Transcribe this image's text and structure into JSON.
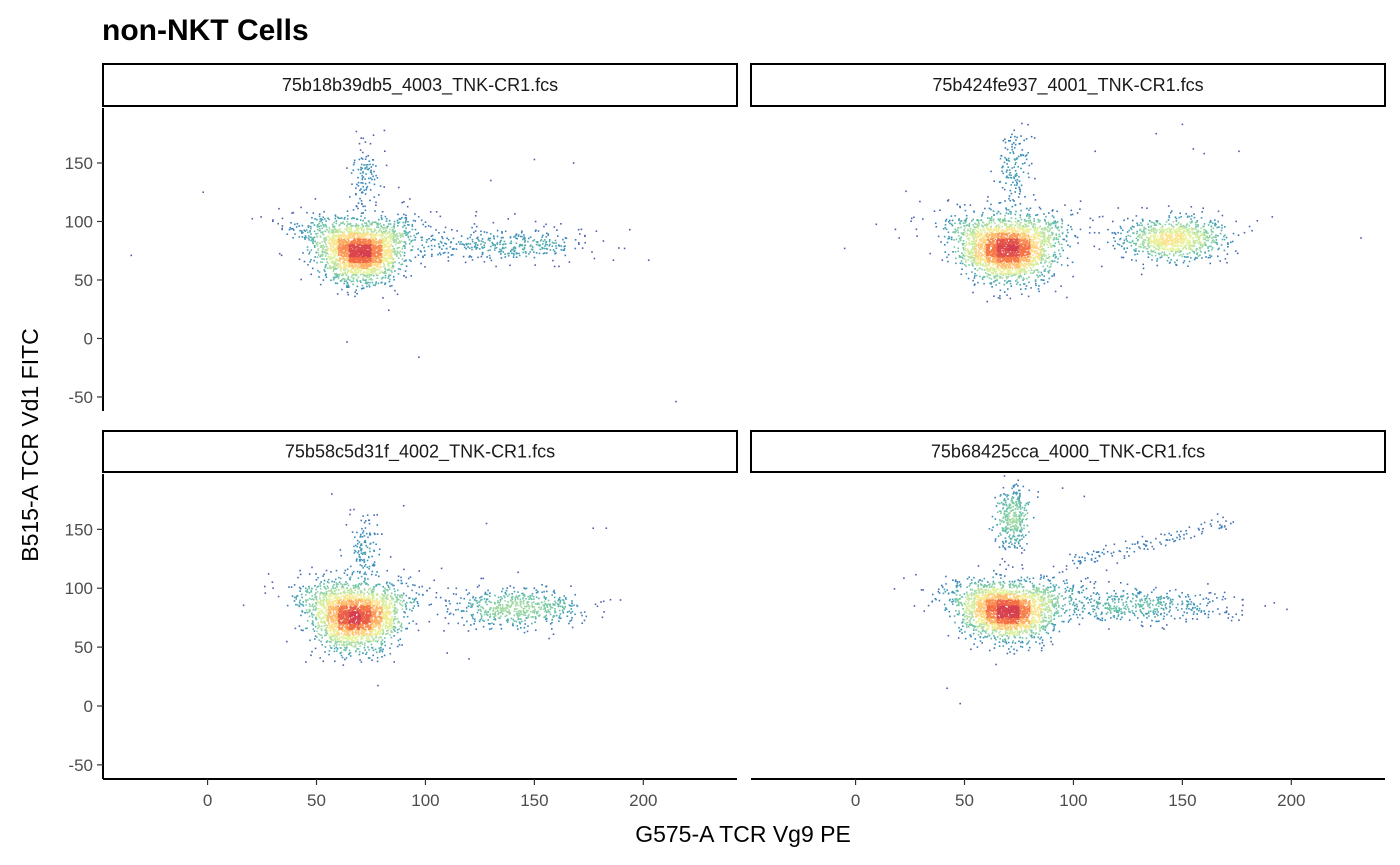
{
  "chart_data": {
    "type": "scatter",
    "subtype": "density-colored scatter, facet grid 2x2",
    "title": "non-NKT Cells",
    "xlabel": "G575-A TCR Vg9 PE",
    "ylabel": "B515-A TCR Vd1 FITC",
    "xlim": [
      -48,
      243
    ],
    "ylim": [
      -62,
      197
    ],
    "x_ticks": [
      0,
      50,
      100,
      150,
      200
    ],
    "y_ticks": [
      -50,
      0,
      50,
      100,
      150
    ],
    "grid": false,
    "color_scale": [
      "#5e4fa2",
      "#3288bd",
      "#66c2a5",
      "#abdda4",
      "#e6f598",
      "#fee08b",
      "#fdae61",
      "#f46d43",
      "#d53e4f"
    ],
    "panels": [
      {
        "label": "75b18b39db5_4003_TNK-CR1.fcs",
        "clusters": [
          {
            "role": "main",
            "x": 70,
            "y": 76,
            "sx": 9,
            "sy": 13,
            "n": 2600
          },
          {
            "role": "vg9-tail",
            "x": 135,
            "y": 80,
            "sx": 20,
            "sy": 7,
            "n": 380
          },
          {
            "role": "vd1-tail",
            "x": 72,
            "y": 138,
            "sx": 4,
            "sy": 14,
            "n": 110
          }
        ],
        "outliers": [
          [
            -35,
            71
          ],
          [
            -2,
            125
          ],
          [
            130,
            135
          ],
          [
            150,
            153
          ],
          [
            97,
            -16
          ],
          [
            64,
            -3
          ],
          [
            215,
            -54
          ],
          [
            168,
            150
          ]
        ]
      },
      {
        "label": "75b424fe937_4001_TNK-CR1.fcs",
        "clusters": [
          {
            "role": "main",
            "x": 70,
            "y": 78,
            "sx": 10,
            "sy": 14,
            "n": 2600
          },
          {
            "role": "vg9-tail",
            "x": 145,
            "y": 85,
            "sx": 12,
            "sy": 9,
            "n": 900
          },
          {
            "role": "vd1-tail",
            "x": 73,
            "y": 145,
            "sx": 4,
            "sy": 18,
            "n": 140
          }
        ],
        "outliers": [
          [
            -5,
            77
          ],
          [
            20,
            86
          ],
          [
            232,
            86
          ],
          [
            155,
            162
          ],
          [
            160,
            158
          ],
          [
            176,
            160
          ],
          [
            150,
            183
          ],
          [
            138,
            175
          ],
          [
            110,
            160
          ]
        ]
      },
      {
        "label": "75b58c5d31f_4002_TNK-CR1.fcs",
        "clusters": [
          {
            "role": "main",
            "x": 68,
            "y": 77,
            "sx": 9,
            "sy": 14,
            "n": 2600
          },
          {
            "role": "vg9-tail",
            "x": 142,
            "y": 83,
            "sx": 15,
            "sy": 8,
            "n": 600
          },
          {
            "role": "vd1-tail",
            "x": 72,
            "y": 138,
            "sx": 4,
            "sy": 15,
            "n": 120
          }
        ],
        "outliers": [
          [
            57,
            180
          ],
          [
            90,
            170
          ],
          [
            128,
            155
          ],
          [
            177,
            151
          ],
          [
            183,
            151
          ],
          [
            110,
            45
          ],
          [
            120,
            40
          ],
          [
            182,
            80
          ]
        ]
      },
      {
        "label": "75b68425cca_4000_TNK-CR1.fcs",
        "clusters": [
          {
            "role": "main",
            "x": 70,
            "y": 82,
            "sx": 10,
            "sy": 12,
            "n": 2600
          },
          {
            "role": "vg9-tail",
            "x": 130,
            "y": 85,
            "sx": 22,
            "sy": 7,
            "n": 450
          },
          {
            "role": "vd1-cluster",
            "x": 72,
            "y": 160,
            "sx": 4,
            "sy": 14,
            "n": 350
          },
          {
            "role": "diagonal-arm",
            "x": 140,
            "y": 140,
            "sx": 25,
            "sy": 10,
            "n": 120
          }
        ],
        "outliers": [
          [
            48,
            2
          ],
          [
            42,
            15
          ],
          [
            27,
            85
          ],
          [
            188,
            85
          ],
          [
            198,
            82
          ],
          [
            95,
            185
          ],
          [
            105,
            178
          ],
          [
            170,
            157
          ]
        ]
      }
    ]
  }
}
